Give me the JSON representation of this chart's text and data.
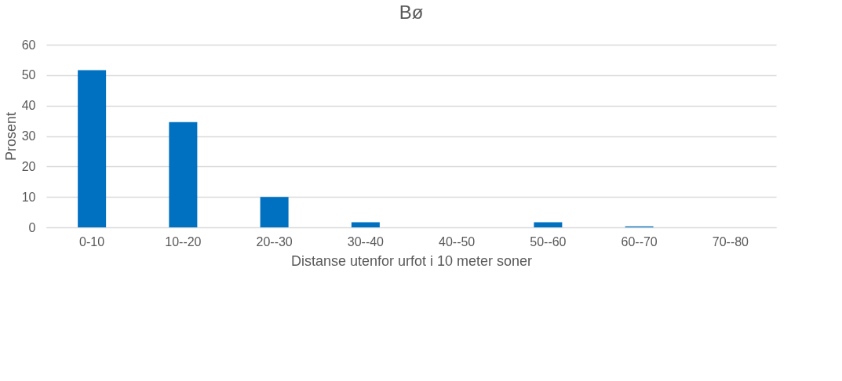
{
  "chart_data": {
    "type": "bar",
    "title": "Bø",
    "xlabel": "Distanse utenfor urfot i 10 meter soner",
    "ylabel": "Prosent",
    "categories": [
      "0-10",
      "10--20",
      "20--30",
      "30--40",
      "40--50",
      "50--60",
      "60--70",
      "70--80"
    ],
    "values": [
      51.6,
      34.6,
      10,
      1.7,
      0,
      1.7,
      0.3,
      0
    ],
    "color": "#0070c0",
    "ylim": [
      0,
      60
    ],
    "yticks": [
      0,
      10,
      20,
      30,
      40,
      50,
      60
    ],
    "grid": "y"
  }
}
